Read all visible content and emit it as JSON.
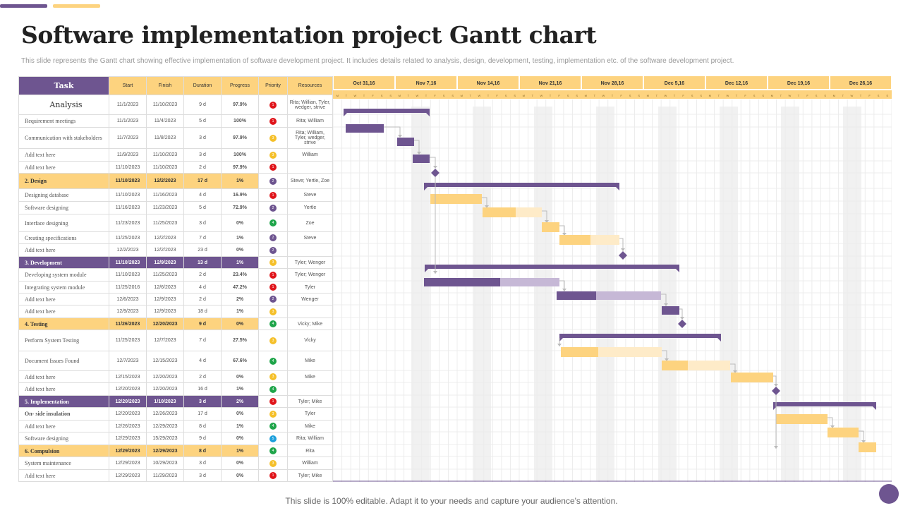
{
  "title": "Software implementation project Gantt chart",
  "subtitle": "This slide represents the Gantt chart showing effective implementation of software development project. It includes details related to analysis, design, development, testing, implementation etc. of the software development project.",
  "footer": "This slide is 100% editable. Adapt it to your needs and capture your audience's attention.",
  "colors": {
    "purple": "#6e5590",
    "yellow": "#fdd37f",
    "light_purple": "#c6b8d6",
    "light_yellow": "#feebc8",
    "priority": {
      "1": "#e0161c",
      "2": "#6e5590",
      "3": "#f5c02a",
      "4": "#1fa54a",
      "5": "#1ea0dc"
    }
  },
  "chart_data": {
    "type": "table",
    "columns": [
      "Task",
      "Start",
      "Finish",
      "Duration",
      "Progress",
      "Priority",
      "Resources"
    ],
    "weeks": [
      "Oct 31,16",
      "Nov 7,16",
      "Nov 14,16",
      "Nov 21,16",
      "Nov 28,16",
      "Dec 5,16",
      "Dec 12,16",
      "Dec 19,16",
      "Dec 26,16"
    ],
    "day_letters": [
      "M",
      "T",
      "W",
      "T",
      "F",
      "S",
      "S"
    ],
    "rows": [
      {
        "task": "Analysis",
        "start": "11/1/2023",
        "finish": "11/10/2023",
        "duration": "9 d",
        "progress": "97.9%",
        "priority": 1,
        "resources": "Rita; Willian, Tyler, wedger, strive",
        "kind": "big"
      },
      {
        "task": "Requirement meetings",
        "start": "11/1/2023",
        "finish": "11/4/2023",
        "duration": "5 d",
        "progress": "100%",
        "priority": 1,
        "resources": "Rita; William"
      },
      {
        "task": "Communication with stakeholders",
        "start": "11/7/2023",
        "finish": "11/8/2023",
        "duration": "3 d",
        "progress": "97.9%",
        "priority": 3,
        "resources": "Rita; William, Tyler, wedger, strive"
      },
      {
        "task": "Add text here",
        "start": "11/9/2023",
        "finish": "11/10/2023",
        "duration": "3 d",
        "progress": "100%",
        "priority": 3,
        "resources": "William"
      },
      {
        "task": "Add text here",
        "start": "11/10/2023",
        "finish": "11/10/2023",
        "duration": "2 d",
        "progress": "97.9%",
        "priority": 1,
        "resources": ""
      },
      {
        "task": "2.  Design",
        "start": "11/10/2023",
        "finish": "12/2/2023",
        "duration": "17 d",
        "progress": "1%",
        "priority": 2,
        "resources": "Steve; Yertle, Zoe",
        "kind": "gy"
      },
      {
        "task": "Designing database",
        "start": "11/10/2023",
        "finish": "11/16/2023",
        "duration": "4 d",
        "progress": "16.9%",
        "priority": 1,
        "resources": "Steve"
      },
      {
        "task": "Software designing",
        "start": "11/16/2023",
        "finish": "11/23/2023",
        "duration": "5 d",
        "progress": "72.9%",
        "priority": 2,
        "resources": "Yertle"
      },
      {
        "task": "Interface designing",
        "start": "11/23/2023",
        "finish": "11/25/2023",
        "duration": "3 d",
        "progress": "0%",
        "priority": 4,
        "resources": "Zoe"
      },
      {
        "task": "Creating specifications",
        "start": "11/25/2023",
        "finish": "12/2/2023",
        "duration": "7 d",
        "progress": "1%",
        "priority": 2,
        "resources": "Steve"
      },
      {
        "task": "Add text here",
        "start": "12/2/2023",
        "finish": "12/2/2023",
        "duration": "23 d",
        "progress": "0%",
        "priority": 2,
        "resources": ""
      },
      {
        "task": "3.  Development",
        "start": "11/10/2023",
        "finish": "12/9/2023",
        "duration": "13 d",
        "progress": "1%",
        "priority": 3,
        "resources": "Tyler; Wenger",
        "kind": "gp"
      },
      {
        "task": "Developing system module",
        "start": "11/10/2023",
        "finish": "11/25/2023",
        "duration": "2 d",
        "progress": "23.4%",
        "priority": 1,
        "resources": "Tyler; Wenger"
      },
      {
        "task": "Integrating system module",
        "start": "11/25/2016",
        "finish": "12/6/2023",
        "duration": "4 d",
        "progress": "47.2%",
        "priority": 1,
        "resources": "Tyler"
      },
      {
        "task": "Add text here",
        "start": "12/6/2023",
        "finish": "12/9/2023",
        "duration": "2 d",
        "progress": "2%",
        "priority": 2,
        "resources": "Wenger"
      },
      {
        "task": "Add text here",
        "start": "12/9/2023",
        "finish": "12/9/2023",
        "duration": "18 d",
        "progress": "1%",
        "priority": 3,
        "resources": ""
      },
      {
        "task": "4. Testing",
        "start": "11/26/2023",
        "finish": "12/20/2023",
        "duration": "9 d",
        "progress": "0%",
        "priority": 4,
        "resources": "Vicky; Mike",
        "kind": "gy"
      },
      {
        "task": "Perform System Testing",
        "start": "11/25/2023",
        "finish": "12/7/2023",
        "duration": "7 d",
        "progress": "27.5%",
        "priority": 3,
        "resources": "Vicky"
      },
      {
        "task": "Document Issues Found",
        "start": "12/7/2023",
        "finish": "12/15/2023",
        "duration": "4 d",
        "progress": "67.6%",
        "priority": 4,
        "resources": "Mike"
      },
      {
        "task": "Add text here",
        "start": "12/15/2023",
        "finish": "12/20/2023",
        "duration": "2 d",
        "progress": "0%",
        "priority": 3,
        "resources": "Mike"
      },
      {
        "task": "Add text here",
        "start": "12/20/2023",
        "finish": "12/20/2023",
        "duration": "16 d",
        "progress": "1%",
        "priority": 4,
        "resources": ""
      },
      {
        "task": "5. Implementation",
        "start": "12/20/2023",
        "finish": "1/10/2023",
        "duration": "3 d",
        "progress": "2%",
        "priority": 1,
        "resources": "Tyler; Mike",
        "kind": "gp"
      },
      {
        "task": "On- side insulation",
        "start": "12/20/2023",
        "finish": "12/26/2023",
        "duration": "17 d",
        "progress": "0%",
        "priority": 3,
        "resources": "Tyler",
        "kind": "bold"
      },
      {
        "task": "Add text here",
        "start": "12/26/2023",
        "finish": "12/29/2023",
        "duration": "8 d",
        "progress": "1%",
        "priority": 4,
        "resources": "Mike"
      },
      {
        "task": "Software designing",
        "start": "12/29/2023",
        "finish": "15/29/2023",
        "duration": "9 d",
        "progress": "0%",
        "priority": 5,
        "resources": "Rita; William"
      },
      {
        "task": "6. Compulsion",
        "start": "12/29/2023",
        "finish": "12/29/2023",
        "duration": "8 d",
        "progress": "1%",
        "priority": 4,
        "resources": "Rita",
        "kind": "gy"
      },
      {
        "task": "System maintenance",
        "start": "12/29/2023",
        "finish": "10/29/2023",
        "duration": "3 d",
        "progress": "0%",
        "priority": 3,
        "resources": "William"
      },
      {
        "task": "Add text here",
        "start": "12/29/2023",
        "finish": "11/29/2023",
        "duration": "3 d",
        "progress": "0%",
        "priority": 1,
        "resources": "Tyler; Mike"
      }
    ]
  }
}
